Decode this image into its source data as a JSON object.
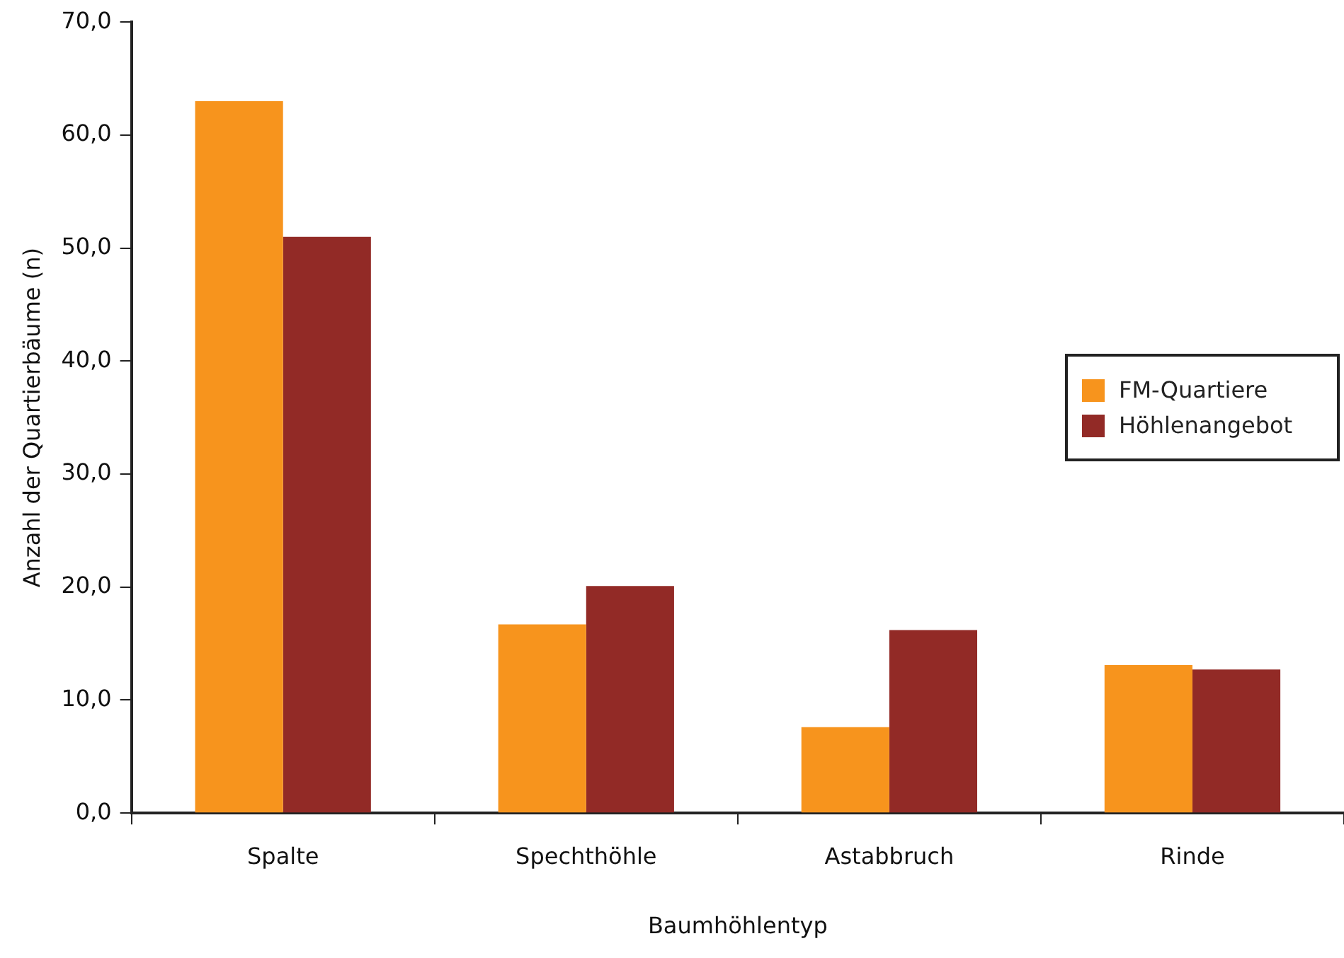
{
  "chart_data": {
    "type": "bar",
    "xlabel": "Baumhöhlentyp",
    "ylabel": "Anzahl der Quartierbäume (n)",
    "categories": [
      "Spalte",
      "Spechthöhle",
      "Astabbruch",
      "Rinde"
    ],
    "series": [
      {
        "name": "FM-Quartiere",
        "color": "#f7941d",
        "values": [
          63.0,
          16.7,
          7.6,
          13.1
        ]
      },
      {
        "name": "Höhlenangebot",
        "color": "#922a26",
        "values": [
          51.0,
          20.1,
          16.2,
          12.7
        ]
      }
    ],
    "ylim": [
      0,
      70
    ],
    "yticks": [
      {
        "value": 0,
        "label": "0,0"
      },
      {
        "value": 10,
        "label": "10,0"
      },
      {
        "value": 20,
        "label": "20,0"
      },
      {
        "value": 30,
        "label": "30,0"
      },
      {
        "value": 40,
        "label": "40,0"
      },
      {
        "value": 50,
        "label": "50,0"
      },
      {
        "value": 60,
        "label": "60,0"
      },
      {
        "value": 70,
        "label": "70,0"
      }
    ],
    "grid": false,
    "legend": "right"
  }
}
